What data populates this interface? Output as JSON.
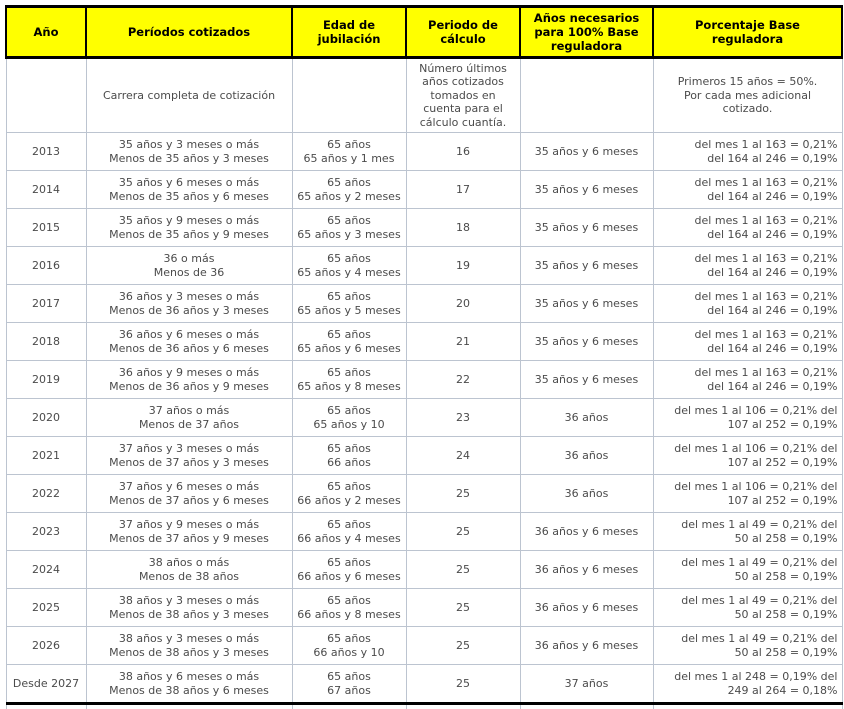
{
  "colors": {
    "header_background": "#ffff00",
    "header_text": "#000000",
    "header_border": "#000000",
    "body_border": "#bcc4d0",
    "body_text": "#4b4b4b"
  },
  "table": {
    "header_lines": [
      [
        "Año"
      ],
      [
        "Períodos cotizados"
      ],
      [
        "Edad de",
        "jubilación"
      ],
      [
        "Periodo de",
        "cálculo"
      ],
      [
        "Años necesarios",
        "para 100% Base",
        "reguladora"
      ],
      [
        "Porcentaje Base",
        "reguladora"
      ]
    ],
    "subheader": {
      "periodos": [
        "Carrera completa de cotización"
      ],
      "calculo": [
        "Número últimos",
        "años cotizados",
        "tomados en",
        "cuenta para el",
        "cálculo cuantía."
      ],
      "porcentaje": [
        "Primeros 15 años = 50%.",
        "Por cada mes adicional",
        "cotizado."
      ]
    },
    "rows": [
      {
        "ano": "2013",
        "periodos": [
          "35 años y 3 meses o más",
          "Menos de 35 años y 3 meses"
        ],
        "edad": [
          "65 años",
          "65 años y 1 mes"
        ],
        "calculo": "16",
        "necesarios": "35 años y 6 meses",
        "porcentaje": [
          "del mes 1 al 163 = 0,21%",
          "del 164 al 246 = 0,19%"
        ]
      },
      {
        "ano": "2014",
        "periodos": [
          "35 años y 6 meses o más",
          "Menos de 35 años y 6 meses"
        ],
        "edad": [
          "65 años",
          "65 años y 2 meses"
        ],
        "calculo": "17",
        "necesarios": "35 años y 6 meses",
        "porcentaje": [
          "del mes 1 al 163 = 0,21%",
          "del 164 al 246 = 0,19%"
        ]
      },
      {
        "ano": "2015",
        "periodos": [
          "35 años y 9 meses o más",
          "Menos de 35 años y 9 meses"
        ],
        "edad": [
          "65 años",
          "65 años y 3 meses"
        ],
        "calculo": "18",
        "necesarios": "35 años y 6 meses",
        "porcentaje": [
          "del mes 1 al 163 = 0,21%",
          "del 164 al 246 = 0,19%"
        ]
      },
      {
        "ano": "2016",
        "periodos": [
          "36 o más",
          "Menos de 36"
        ],
        "edad": [
          "65 años",
          "65 años y 4 meses"
        ],
        "calculo": "19",
        "necesarios": "35 años y 6 meses",
        "porcentaje": [
          "del mes 1 al 163 = 0,21%",
          "del 164 al 246 = 0,19%"
        ]
      },
      {
        "ano": "2017",
        "periodos": [
          "36 años y 3 meses o más",
          "Menos de 36 años y 3 meses"
        ],
        "edad": [
          "65 años",
          "65 años y 5 meses"
        ],
        "calculo": "20",
        "necesarios": "35 años y 6 meses",
        "porcentaje": [
          "del mes 1 al 163 = 0,21%",
          "del 164 al 246 = 0,19%"
        ]
      },
      {
        "ano": "2018",
        "periodos": [
          "36 años y 6 meses o más",
          "Menos de 36 años y 6 meses"
        ],
        "edad": [
          "65 años",
          "65 años y 6 meses"
        ],
        "calculo": "21",
        "necesarios": "35 años y 6 meses",
        "porcentaje": [
          "del mes 1 al 163 = 0,21%",
          "del 164 al 246 = 0,19%"
        ]
      },
      {
        "ano": "2019",
        "periodos": [
          "36 años y 9 meses o más",
          "Menos de 36 años y 9 meses"
        ],
        "edad": [
          "65 años",
          "65 años y 8 meses"
        ],
        "calculo": "22",
        "necesarios": "35 años y 6 meses",
        "porcentaje": [
          "del mes 1 al 163 = 0,21%",
          "del 164 al 246 = 0,19%"
        ]
      },
      {
        "ano": "2020",
        "periodos": [
          "37 años o más",
          "Menos de 37 años"
        ],
        "edad": [
          "65 años",
          "65 años y 10"
        ],
        "calculo": "23",
        "necesarios": "36 años",
        "porcentaje": [
          "del mes 1 al 106 = 0,21% del",
          "107 al 252 = 0,19%"
        ]
      },
      {
        "ano": "2021",
        "periodos": [
          "37 años y 3 meses o más",
          "Menos de 37 años y 3 meses"
        ],
        "edad": [
          "65 años",
          "66 años"
        ],
        "calculo": "24",
        "necesarios": "36 años",
        "porcentaje": [
          "del mes 1 al 106 = 0,21% del",
          "107 al 252 = 0,19%"
        ]
      },
      {
        "ano": "2022",
        "periodos": [
          "37 años y 6 meses o más",
          "Menos de 37 años y 6 meses"
        ],
        "edad": [
          "65 años",
          "66 años y 2 meses"
        ],
        "calculo": "25",
        "necesarios": "36 años",
        "porcentaje": [
          "del mes 1 al 106 = 0,21% del",
          "107 al 252 = 0,19%"
        ]
      },
      {
        "ano": "2023",
        "periodos": [
          "37 años y 9 meses o más",
          "Menos de 37 años y 9 meses"
        ],
        "edad": [
          "65 años",
          "66 años y 4 meses"
        ],
        "calculo": "25",
        "necesarios": "36 años y 6 meses",
        "porcentaje": [
          "del mes 1 al 49 = 0,21% del",
          "50 al 258 = 0,19%"
        ]
      },
      {
        "ano": "2024",
        "periodos": [
          "38 años o más",
          "Menos de 38 años"
        ],
        "edad": [
          "65 años",
          "66 años y 6 meses"
        ],
        "calculo": "25",
        "necesarios": "36 años y 6 meses",
        "porcentaje": [
          "del mes 1 al 49 = 0,21% del",
          "50 al 258 = 0,19%"
        ]
      },
      {
        "ano": "2025",
        "periodos": [
          "38 años y 3 meses o más",
          "Menos de 38 años y 3 meses"
        ],
        "edad": [
          "65 años",
          "66 años y 8 meses"
        ],
        "calculo": "25",
        "necesarios": "36 años y 6 meses",
        "porcentaje": [
          "del mes 1 al 49 = 0,21% del",
          "50 al 258 = 0,19%"
        ]
      },
      {
        "ano": "2026",
        "periodos": [
          "38 años y 3 meses o más",
          "Menos de 38 años y 3 meses"
        ],
        "edad": [
          "65 años",
          "66 años y 10"
        ],
        "calculo": "25",
        "necesarios": "36 años y 6 meses",
        "porcentaje": [
          "del mes 1 al 49 = 0,21% del",
          "50 al 258 = 0,19%"
        ]
      },
      {
        "ano": "Desde 2027",
        "periodos": [
          "38 años y 6 meses o más",
          "Menos de 38 años y 6 meses"
        ],
        "edad": [
          "65 años",
          "67 años"
        ],
        "calculo": "25",
        "necesarios": "37 años",
        "porcentaje": [
          "del mes 1 al 248 = 0,19% del",
          "249 al 264 = 0,18%"
        ]
      }
    ]
  }
}
